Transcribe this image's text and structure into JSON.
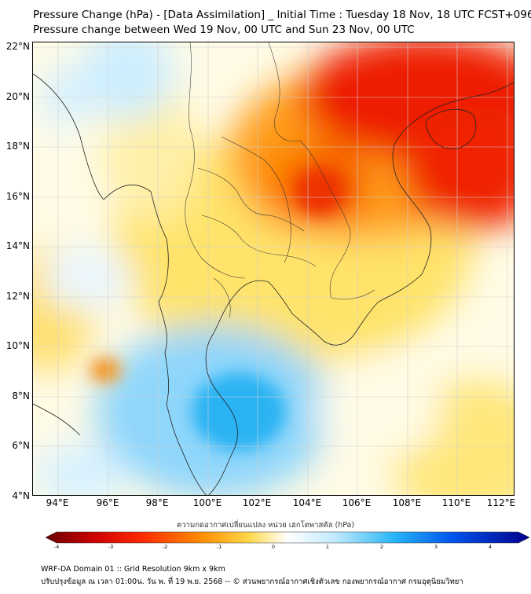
{
  "header": {
    "title_line1": "Pressure Change (hPa) - [Data Assimilation] _ Initial Time : Tuesday 18 Nov, 18 UTC FCST+096",
    "title_line2": "Pressure change between Wed 19 Nov, 00 UTC and Sun 23 Nov, 00 UTC"
  },
  "map": {
    "lat_labels": [
      "22°N",
      "20°N",
      "18°N",
      "16°N",
      "14°N",
      "12°N",
      "10°N",
      "8°N",
      "6°N",
      "4°N"
    ],
    "lon_labels": [
      "94°E",
      "96°E",
      "98°E",
      "100°E",
      "102°E",
      "104°E",
      "106°E",
      "108°E",
      "110°E",
      "112°E"
    ],
    "lat_range": [
      4,
      22
    ],
    "lon_range": [
      93,
      112.3
    ],
    "grid": true,
    "colors": {
      "strong_rise": "#ee0000",
      "rise": "#ff8c00",
      "slight_rise": "#ffd84a",
      "neutral": "#fffbe6",
      "slight_fall": "#bfe9ff",
      "fall": "#29b6f6"
    }
  },
  "colorbar": {
    "label": "ความกดอากาศเปลี่ยนแปลง หน่วย เฮกโตพาสคัล (hPa)",
    "ticks": [
      "-4",
      "-3",
      "-2",
      "-1",
      "0",
      "1",
      "2",
      "3",
      "4"
    ],
    "range": [
      -4,
      4
    ]
  },
  "footer": {
    "line1": "WRF-DA Domain 01 :: Grid Resolution 9km x 9km",
    "line2": "ปรับปรุงข้อมูล ณ เวลา 01:00น. วัน พ. ที่ 19 พ.ย. 2568 -- © ส่วนพยากรณ์อากาศเชิงตัวเลข กองพยากรณ์อากาศ กรมอุตุนิยมวิทยา"
  }
}
